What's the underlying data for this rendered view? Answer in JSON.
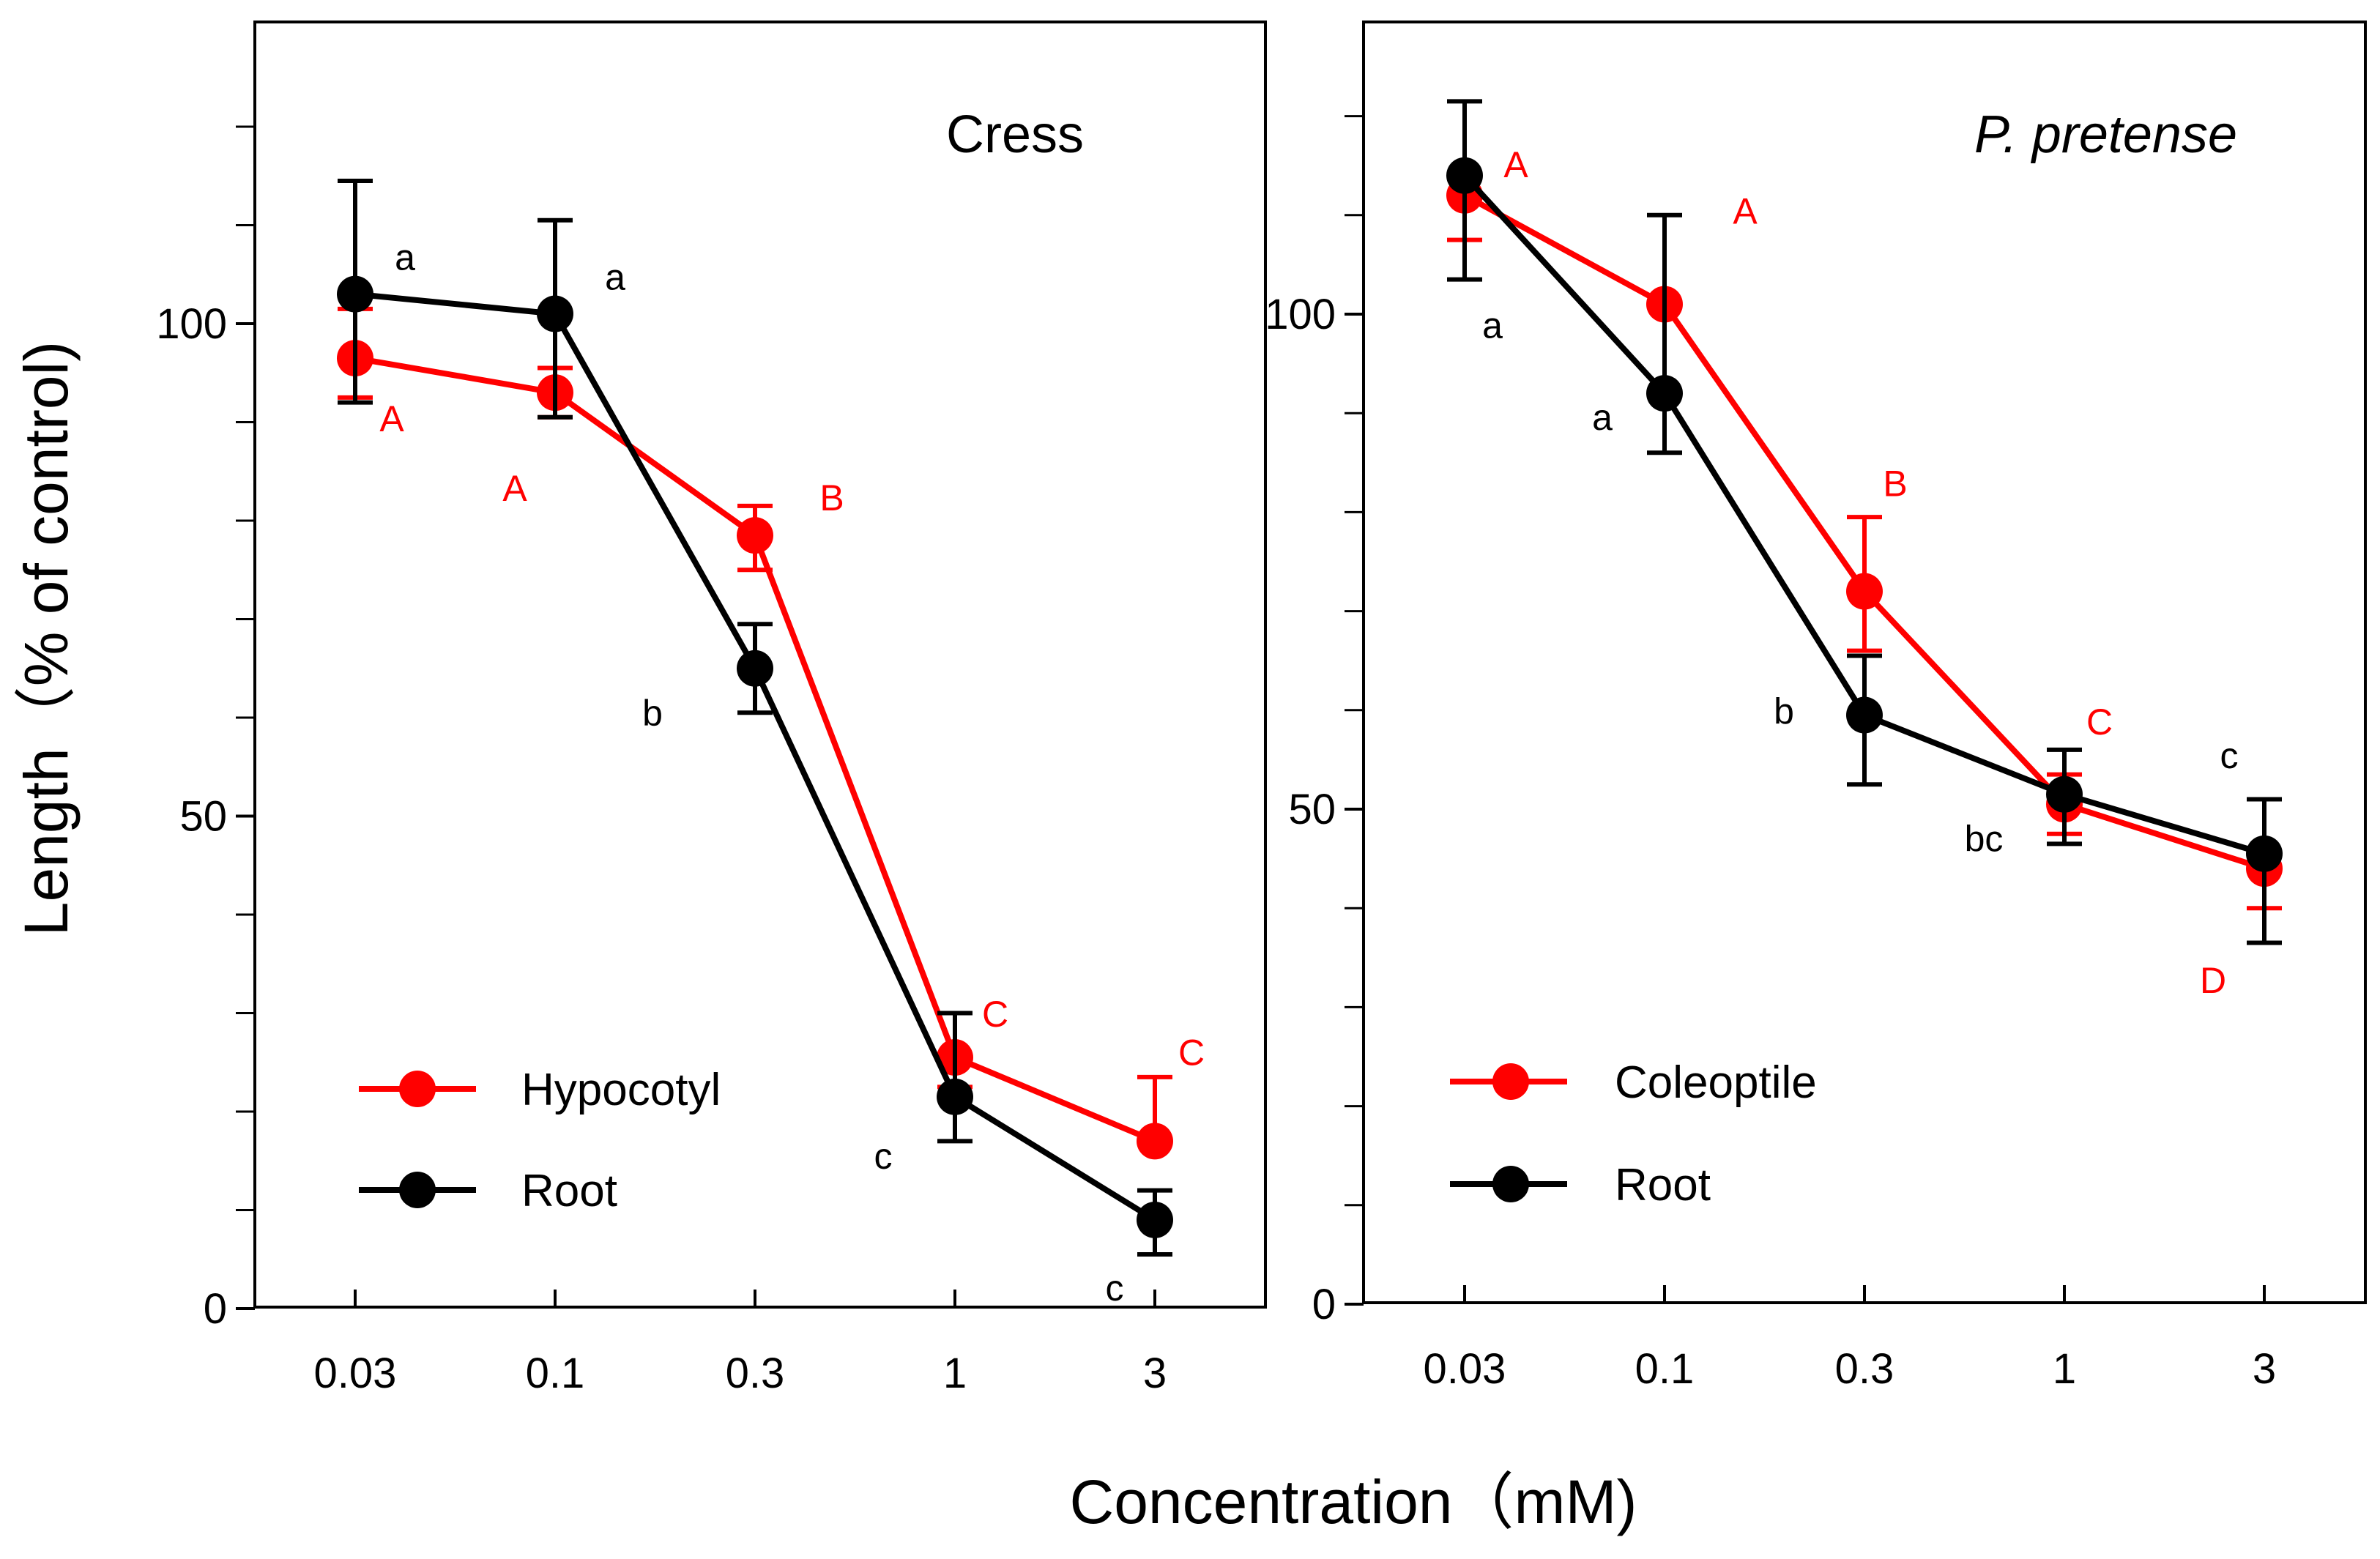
{
  "figure": {
    "ylabel": "Length（% of control)",
    "xlabel": "Concentration（mM)"
  },
  "colors": {
    "series_red": "#ff0000",
    "series_black": "#000000"
  },
  "chart_data": [
    {
      "type": "line",
      "title": "Cress",
      "title_italic": false,
      "categories": [
        "0.03",
        "0.1",
        "0.3",
        "1",
        "3"
      ],
      "ylim": [
        0,
        125
      ],
      "yticks": [
        0,
        50,
        100
      ],
      "yminor": [
        10,
        20,
        30,
        40,
        60,
        70,
        80,
        90,
        110,
        120
      ],
      "legend_position": "bottom-left",
      "series": [
        {
          "name": "Hypocotyl",
          "color": "#ff0000",
          "values": [
            96.5,
            93,
            78.5,
            25.5,
            17
          ],
          "err_low": [
            92.5,
            90.5,
            75,
            22.5,
            17
          ],
          "err_high": [
            101.5,
            95.5,
            81.5,
            30,
            23.5
          ],
          "letters": [
            "A",
            "A",
            "B",
            "C",
            "C"
          ]
        },
        {
          "name": "Root",
          "color": "#000000",
          "values": [
            103,
            101,
            65,
            21.5,
            9
          ],
          "err_low": [
            92,
            90.5,
            60.5,
            17,
            5.5
          ],
          "err_high": [
            114.5,
            110.5,
            69.5,
            30,
            12
          ]
        }
      ],
      "root_letters": [
        "a",
        "a",
        "b",
        "c",
        "c"
      ]
    },
    {
      "type": "line",
      "title": "P. pretense",
      "title_italic": true,
      "categories": [
        "0.03",
        "0.1",
        "0.3",
        "1",
        "3"
      ],
      "ylim": [
        0,
        125
      ],
      "yticks": [
        0,
        50,
        100
      ],
      "yminor": [
        10,
        20,
        30,
        40,
        60,
        70,
        80,
        90,
        110,
        120
      ],
      "legend_position": "bottom-left",
      "series": [
        {
          "name": "Coleoptile",
          "color": "#ff0000",
          "values": [
            112,
            101,
            72,
            50.5,
            44
          ],
          "err_low": [
            107.5,
            101,
            66,
            47.5,
            40
          ],
          "err_high": [
            114,
            101,
            79.5,
            53.5,
            44
          ],
          "letters": [
            "A",
            "A",
            "B",
            "C",
            "D"
          ]
        },
        {
          "name": "Root",
          "color": "#000000",
          "values": [
            114,
            92,
            59.5,
            51.5,
            45.5
          ],
          "err_low": [
            103.5,
            86,
            52.5,
            46.5,
            36.5
          ],
          "err_high": [
            121.5,
            110,
            65.5,
            56,
            51
          ]
        }
      ],
      "root_letters": [
        "a",
        "a",
        "b",
        "bc",
        "c"
      ]
    }
  ]
}
